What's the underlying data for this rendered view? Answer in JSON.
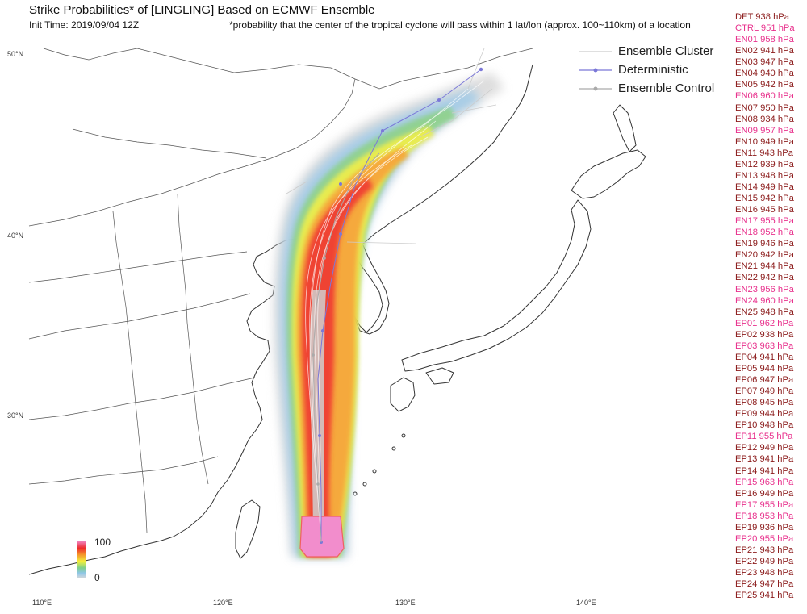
{
  "title": "Strike Probabilities* of [LINGLING] Based on ECMWF Ensemble",
  "init_time": "Init Time: 2019/09/04 12Z",
  "footnote": "*probability that the center of the tropical cyclone will pass within 1 lat/lon (approx. 100~110km) of a location",
  "axes": {
    "lat_labels": [
      "50°N",
      "40°N",
      "30°N"
    ],
    "lon_labels": [
      "110°E",
      "120°E",
      "130°E",
      "140°E"
    ]
  },
  "legend": {
    "items": [
      {
        "label": "Ensemble Cluster",
        "icon": "thin-line-icon"
      },
      {
        "label": "Deterministic",
        "icon": "line-dot-icon"
      },
      {
        "label": "Ensemble Control",
        "icon": "line-dot-icon"
      }
    ]
  },
  "colorbar": {
    "max": "100",
    "min": "0"
  },
  "colors": {
    "magenta_member": "#e8308c",
    "dark_member": "#8b1a1a",
    "deterministic": "#7b78d8",
    "control": "#aaaaaa",
    "coast": "#333333"
  },
  "members": [
    {
      "id": "DET",
      "pressure": "938 hPa",
      "color": "dark"
    },
    {
      "id": "CTRL",
      "pressure": "951 hPa",
      "color": "magenta"
    },
    {
      "id": "EN01",
      "pressure": "958 hPa",
      "color": "magenta"
    },
    {
      "id": "EN02",
      "pressure": "941 hPa",
      "color": "dark"
    },
    {
      "id": "EN03",
      "pressure": "947 hPa",
      "color": "dark"
    },
    {
      "id": "EN04",
      "pressure": "940 hPa",
      "color": "dark"
    },
    {
      "id": "EN05",
      "pressure": "942 hPa",
      "color": "dark"
    },
    {
      "id": "EN06",
      "pressure": "960 hPa",
      "color": "magenta"
    },
    {
      "id": "EN07",
      "pressure": "950 hPa",
      "color": "dark"
    },
    {
      "id": "EN08",
      "pressure": "934 hPa",
      "color": "dark"
    },
    {
      "id": "EN09",
      "pressure": "957 hPa",
      "color": "magenta"
    },
    {
      "id": "EN10",
      "pressure": "949 hPa",
      "color": "dark"
    },
    {
      "id": "EN11",
      "pressure": "943 hPa",
      "color": "dark"
    },
    {
      "id": "EN12",
      "pressure": "939 hPa",
      "color": "dark"
    },
    {
      "id": "EN13",
      "pressure": "948 hPa",
      "color": "dark"
    },
    {
      "id": "EN14",
      "pressure": "949 hPa",
      "color": "dark"
    },
    {
      "id": "EN15",
      "pressure": "942 hPa",
      "color": "dark"
    },
    {
      "id": "EN16",
      "pressure": "945 hPa",
      "color": "dark"
    },
    {
      "id": "EN17",
      "pressure": "955 hPa",
      "color": "magenta"
    },
    {
      "id": "EN18",
      "pressure": "952 hPa",
      "color": "magenta"
    },
    {
      "id": "EN19",
      "pressure": "946 hPa",
      "color": "dark"
    },
    {
      "id": "EN20",
      "pressure": "942 hPa",
      "color": "dark"
    },
    {
      "id": "EN21",
      "pressure": "944 hPa",
      "color": "dark"
    },
    {
      "id": "EN22",
      "pressure": "942 hPa",
      "color": "dark"
    },
    {
      "id": "EN23",
      "pressure": "956 hPa",
      "color": "magenta"
    },
    {
      "id": "EN24",
      "pressure": "960 hPa",
      "color": "magenta"
    },
    {
      "id": "EN25",
      "pressure": "948 hPa",
      "color": "dark"
    },
    {
      "id": "EP01",
      "pressure": "962 hPa",
      "color": "magenta"
    },
    {
      "id": "EP02",
      "pressure": "938 hPa",
      "color": "dark"
    },
    {
      "id": "EP03",
      "pressure": "963 hPa",
      "color": "magenta"
    },
    {
      "id": "EP04",
      "pressure": "941 hPa",
      "color": "dark"
    },
    {
      "id": "EP05",
      "pressure": "944 hPa",
      "color": "dark"
    },
    {
      "id": "EP06",
      "pressure": "947 hPa",
      "color": "dark"
    },
    {
      "id": "EP07",
      "pressure": "949 hPa",
      "color": "dark"
    },
    {
      "id": "EP08",
      "pressure": "945 hPa",
      "color": "dark"
    },
    {
      "id": "EP09",
      "pressure": "944 hPa",
      "color": "dark"
    },
    {
      "id": "EP10",
      "pressure": "948 hPa",
      "color": "dark"
    },
    {
      "id": "EP11",
      "pressure": "955 hPa",
      "color": "magenta"
    },
    {
      "id": "EP12",
      "pressure": "949 hPa",
      "color": "dark"
    },
    {
      "id": "EP13",
      "pressure": "941 hPa",
      "color": "dark"
    },
    {
      "id": "EP14",
      "pressure": "941 hPa",
      "color": "dark"
    },
    {
      "id": "EP15",
      "pressure": "963 hPa",
      "color": "magenta"
    },
    {
      "id": "EP16",
      "pressure": "949 hPa",
      "color": "dark"
    },
    {
      "id": "EP17",
      "pressure": "955 hPa",
      "color": "magenta"
    },
    {
      "id": "EP18",
      "pressure": "953 hPa",
      "color": "magenta"
    },
    {
      "id": "EP19",
      "pressure": "936 hPa",
      "color": "dark"
    },
    {
      "id": "EP20",
      "pressure": "955 hPa",
      "color": "magenta"
    },
    {
      "id": "EP21",
      "pressure": "943 hPa",
      "color": "dark"
    },
    {
      "id": "EP22",
      "pressure": "949 hPa",
      "color": "dark"
    },
    {
      "id": "EP23",
      "pressure": "948 hPa",
      "color": "dark"
    },
    {
      "id": "EP24",
      "pressure": "947 hPa",
      "color": "dark"
    },
    {
      "id": "EP25",
      "pressure": "941 hPa",
      "color": "dark"
    }
  ]
}
